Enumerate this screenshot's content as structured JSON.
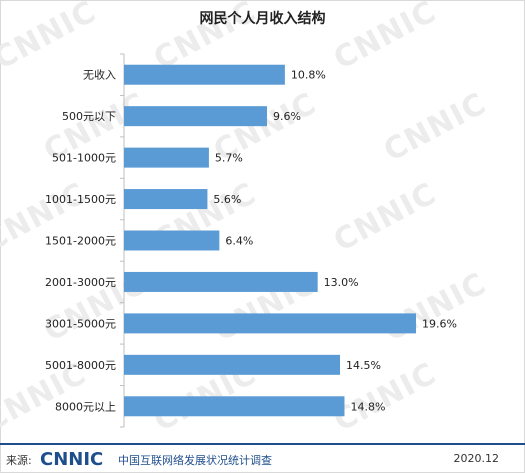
{
  "watermark_text": "CNNIC",
  "chart_data": {
    "type": "bar",
    "orientation": "horizontal",
    "title": "网民个人月收入结构",
    "categories": [
      "无收入",
      "500元以下",
      "501-1000元",
      "1001-1500元",
      "1501-2000元",
      "2001-3000元",
      "3001-5000元",
      "5001-8000元",
      "8000元以上"
    ],
    "values": [
      10.8,
      9.6,
      5.7,
      5.6,
      6.4,
      13.0,
      19.6,
      14.5,
      14.8
    ],
    "value_labels": [
      "10.8%",
      "9.6%",
      "5.7%",
      "5.6%",
      "6.4%",
      "13.0%",
      "19.6%",
      "14.5%",
      "14.8%"
    ],
    "xlim": [
      0,
      20
    ],
    "bar_color": "#5b9bd5",
    "grid": false,
    "legend": "none"
  },
  "footer": {
    "source_label": "来源:",
    "logo_text": "CNNIC",
    "organization": "中国互联网络发展状况统计调查",
    "date": "2020.12",
    "accent_color": "#1f4e8c"
  }
}
